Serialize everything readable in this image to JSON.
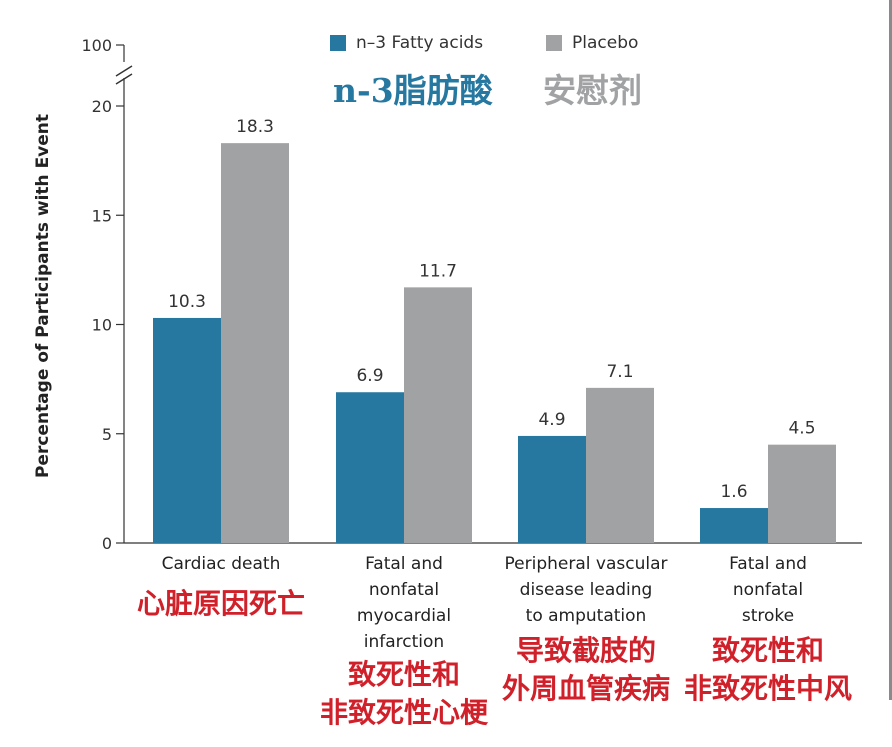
{
  "chart_data": {
    "type": "bar",
    "ylabel": "Percentage of Participants with Event",
    "y_ticks": [
      "0",
      "5",
      "10",
      "15",
      "20",
      "100"
    ],
    "ylim": [
      0,
      20
    ],
    "axis_break": true,
    "categories": [
      {
        "label": "Cardiac death",
        "label_lines": [
          "Cardiac death"
        ],
        "cn_lines": [
          "心脏原因死亡"
        ]
      },
      {
        "label": "Fatal and nonfatal myocardial infarction",
        "label_lines": [
          "Fatal and",
          "nonfatal",
          "myocardial",
          "infarction"
        ],
        "cn_lines": [
          "致死性和",
          "非致死性心梗"
        ]
      },
      {
        "label": "Peripheral vascular disease leading to amputation",
        "label_lines": [
          "Peripheral vascular",
          "disease leading",
          "to amputation"
        ],
        "cn_lines": [
          "导致截肢的",
          "外周血管疾病"
        ]
      },
      {
        "label": "Fatal and nonfatal stroke",
        "label_lines": [
          "Fatal and",
          "nonfatal",
          "stroke"
        ],
        "cn_lines": [
          "致死性和",
          "非致死性中风"
        ]
      }
    ],
    "series": [
      {
        "name": "n–3 Fatty acids",
        "name_cn": "n-3脂肪酸",
        "color": "#2678a0",
        "values": [
          10.3,
          6.9,
          4.9,
          1.6
        ],
        "value_labels": [
          "10.3",
          "6.9",
          "4.9",
          "1.6"
        ]
      },
      {
        "name": "Placebo",
        "name_cn": "安慰剂",
        "color": "#a0a2a4",
        "values": [
          18.3,
          11.7,
          7.1,
          4.5
        ],
        "value_labels": [
          "18.3",
          "11.7",
          "7.1",
          "4.5"
        ]
      }
    ],
    "legend_position": "top-center",
    "grid": false
  }
}
